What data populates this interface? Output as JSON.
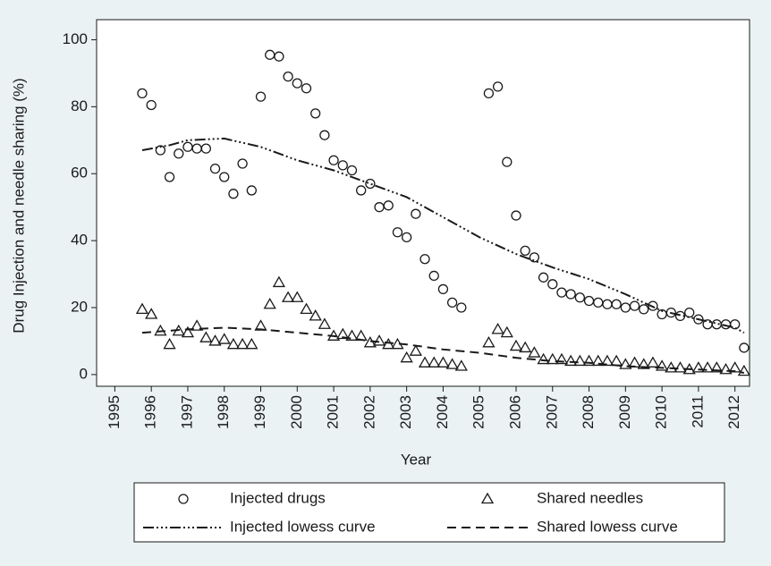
{
  "chart_data": {
    "type": "scatter",
    "x_label": "Year",
    "y_label": "Drug Injection and needle sharing (%)",
    "xlim": [
      1994.5,
      2012.4
    ],
    "ylim": [
      -3.5,
      106
    ],
    "xticks": [
      1995,
      1996,
      1997,
      1998,
      1999,
      2000,
      2001,
      2002,
      2003,
      2004,
      2005,
      2006,
      2007,
      2008,
      2009,
      2010,
      2011,
      2012
    ],
    "yticks": [
      0,
      20,
      40,
      60,
      80,
      100
    ],
    "grid": false,
    "legend": "bottom",
    "series": [
      {
        "name": "Injected drugs",
        "color": "#1a1a1a",
        "mode": "markers",
        "marker": "circle",
        "x": [
          1995.75,
          1996,
          1996.25,
          1996.5,
          1996.75,
          1997,
          1997.25,
          1997.5,
          1997.75,
          1998,
          1998.25,
          1998.5,
          1998.75,
          1999,
          1999.25,
          1999.5,
          1999.75,
          2000,
          2000.25,
          2000.5,
          2000.75,
          2001,
          2001.25,
          2001.5,
          2001.75,
          2002,
          2002.25,
          2002.5,
          2002.75,
          2003,
          2003.25,
          2003.5,
          2003.75,
          2004,
          2004.25,
          2004.5,
          2005.25,
          2005.5,
          2005.75,
          2006,
          2006.25,
          2006.5,
          2006.75,
          2007,
          2007.25,
          2007.5,
          2007.75,
          2008,
          2008.25,
          2008.5,
          2008.75,
          2009,
          2009.25,
          2009.5,
          2009.75,
          2010,
          2010.25,
          2010.5,
          2010.75,
          2011,
          2011.25,
          2011.5,
          2011.75,
          2012,
          2012.25
        ],
        "values": [
          84,
          80.5,
          67,
          59,
          66,
          68,
          67.5,
          67.5,
          61.5,
          59,
          54,
          63,
          55,
          83,
          95.5,
          95,
          89,
          87,
          85.5,
          78,
          71.5,
          64,
          62.5,
          61,
          55,
          57,
          50,
          50.5,
          42.5,
          41,
          48,
          34.5,
          29.5,
          25.5,
          21.5,
          20,
          84,
          86,
          63.5,
          47.5,
          37,
          35,
          29,
          27,
          24.5,
          24,
          23,
          22,
          21.5,
          21,
          21,
          20,
          20.5,
          19.5,
          20.5,
          18,
          18.5,
          17.5,
          18.5,
          16.5,
          15,
          15,
          15,
          15,
          8
        ]
      },
      {
        "name": "Shared needles",
        "color": "#1a1a1a",
        "mode": "markers",
        "marker": "triangle",
        "x": [
          1995.75,
          1996,
          1996.25,
          1996.5,
          1996.75,
          1997,
          1997.25,
          1997.5,
          1997.75,
          1998,
          1998.25,
          1998.5,
          1998.75,
          1999,
          1999.25,
          1999.5,
          1999.75,
          2000,
          2000.25,
          2000.5,
          2000.75,
          2001,
          2001.25,
          2001.5,
          2001.75,
          2002,
          2002.25,
          2002.5,
          2002.75,
          2003,
          2003.25,
          2003.5,
          2003.75,
          2004,
          2004.25,
          2004.5,
          2005.25,
          2005.5,
          2005.75,
          2006,
          2006.25,
          2006.5,
          2006.75,
          2007,
          2007.25,
          2007.5,
          2007.75,
          2008,
          2008.25,
          2008.5,
          2008.75,
          2009,
          2009.25,
          2009.5,
          2009.75,
          2010,
          2010.25,
          2010.5,
          2010.75,
          2011,
          2011.25,
          2011.5,
          2011.75,
          2012,
          2012.25
        ],
        "values": [
          19.5,
          18,
          13,
          9,
          13,
          12.5,
          14.5,
          11,
          10,
          10.5,
          9,
          9,
          9,
          14.5,
          21,
          27.5,
          23,
          23,
          19.5,
          17.5,
          15,
          11.5,
          12,
          11.5,
          11.5,
          9.5,
          10,
          9,
          9,
          5,
          7,
          3.5,
          3.5,
          3.5,
          3,
          2.5,
          9.5,
          13.5,
          12.5,
          8.5,
          8,
          6.5,
          4.5,
          4.5,
          4.5,
          4,
          4,
          4,
          4,
          4,
          4,
          3,
          3.5,
          3,
          3.5,
          2.5,
          2,
          2,
          1.5,
          2,
          2,
          2,
          1.5,
          2,
          1
        ]
      },
      {
        "name": "Injected lowess curve",
        "color": "#1a1a1a",
        "mode": "line",
        "dash": "dash-dot-dot",
        "x": [
          1995.75,
          1996.5,
          1997,
          1998,
          1999,
          2000,
          2001,
          2002,
          2003,
          2004,
          2005,
          2006,
          2007,
          2008,
          2009,
          2010,
          2011,
          2012,
          2012.25
        ],
        "values": [
          67,
          68.5,
          70,
          70.5,
          68,
          64,
          61,
          57,
          53,
          47,
          41,
          36,
          32,
          28.5,
          24,
          19,
          16.5,
          14,
          12.5
        ]
      },
      {
        "name": "Shared lowess curve",
        "color": "#1a1a1a",
        "mode": "line",
        "dash": "dash",
        "x": [
          1995.75,
          1997,
          1998,
          1999,
          2000,
          2001,
          2002,
          2003,
          2004,
          2005,
          2006,
          2007,
          2008,
          2009,
          2010,
          2011,
          2012,
          2012.25
        ],
        "values": [
          12.5,
          13.5,
          14,
          13.5,
          12.5,
          11.5,
          10,
          9,
          7.5,
          6.5,
          5,
          4,
          3.5,
          2.5,
          2,
          1.5,
          1,
          0.5
        ]
      }
    ]
  }
}
